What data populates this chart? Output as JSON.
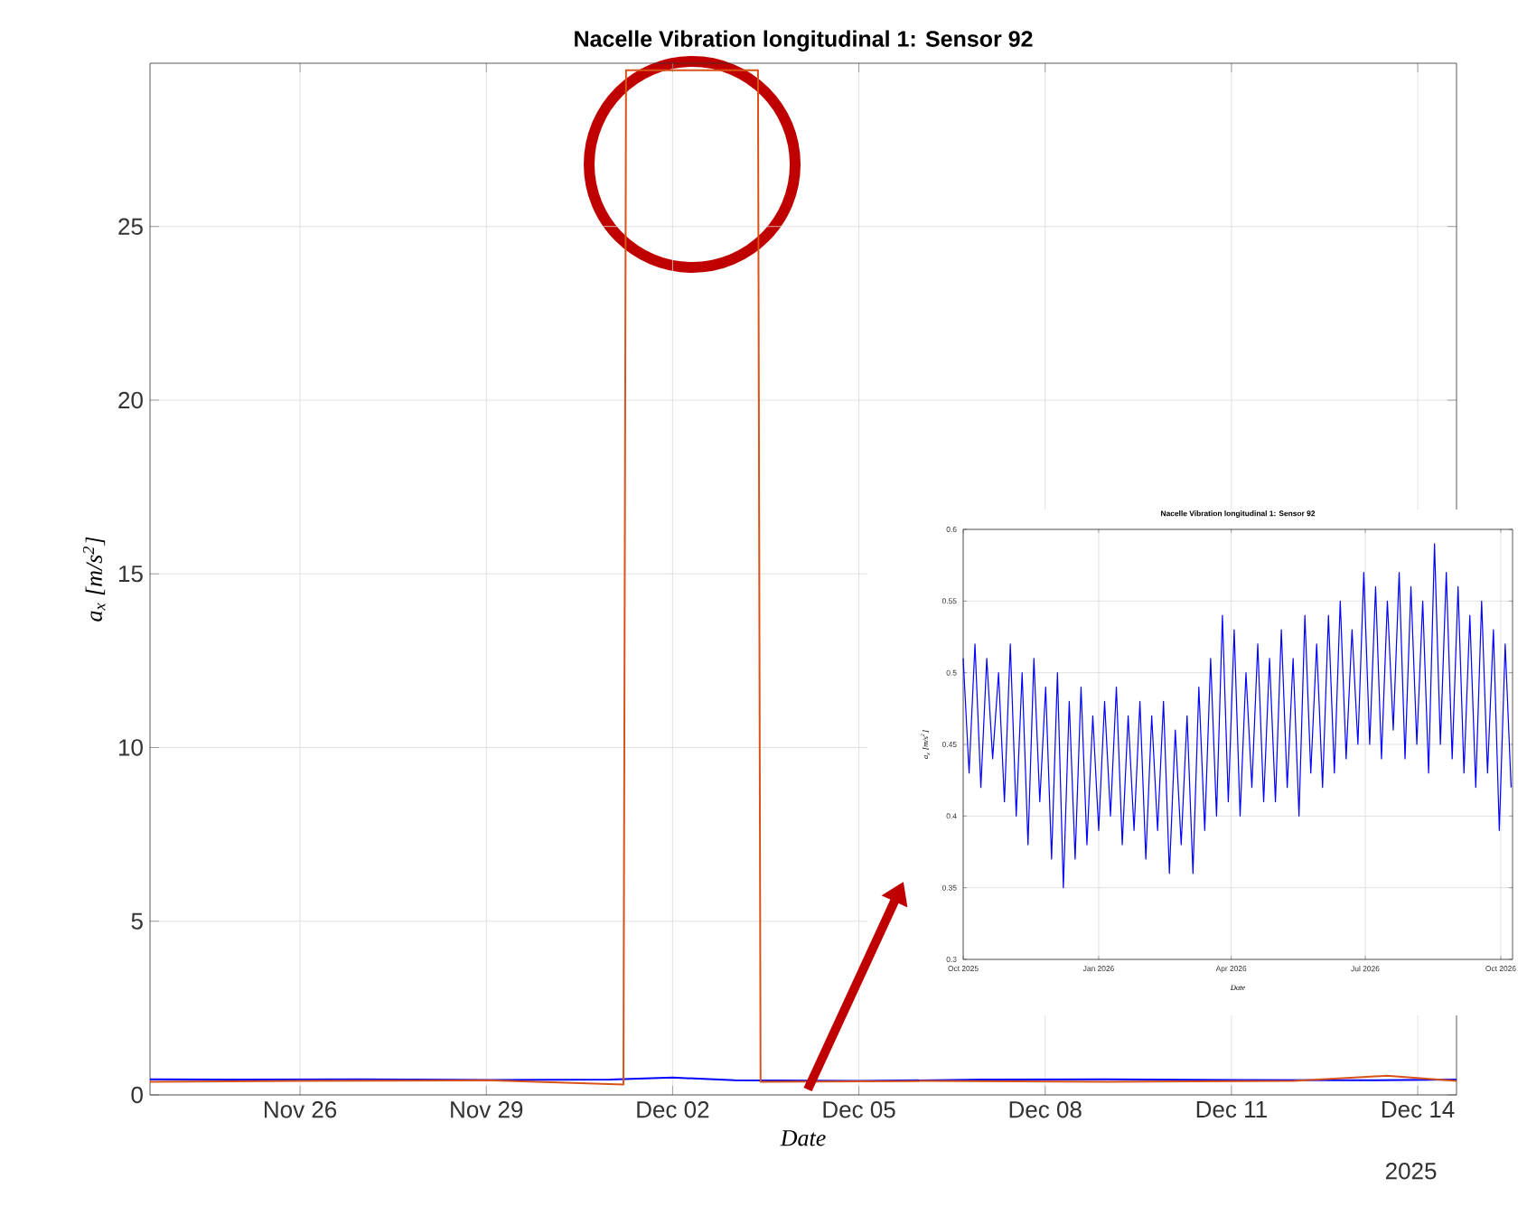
{
  "chart_data": [
    {
      "type": "line",
      "title": "Nacelle Vibration longitudinal 1: Sensor 92",
      "xlabel": "Date",
      "ylabel": "a$_{x}$ [m/s$^{2}$]",
      "xlim": [
        "2025-11-23T14:00",
        "2025-12-14T15:00"
      ],
      "ylim": [
        0,
        29.7
      ],
      "xticks": [
        {
          "value": "2025-11-26",
          "label": "Nov 26"
        },
        {
          "value": "2025-11-29",
          "label": "Nov 29"
        },
        {
          "value": "2025-12-02",
          "label": "Dec 02"
        },
        {
          "value": "2025-12-05",
          "label": "Dec 05"
        },
        {
          "value": "2025-12-08",
          "label": "Dec 08"
        },
        {
          "value": "2025-12-11",
          "label": "Dec 11"
        },
        {
          "value": "2025-12-14",
          "label": "Dec 14"
        }
      ],
      "yticks": [
        0,
        5,
        10,
        15,
        20,
        25
      ],
      "grid": true,
      "marker": "none",
      "line_style": "solid",
      "annotations": [
        "2025"
      ],
      "series": [
        {
          "color": "#0000ff",
          "x": [
            "2025-11-23T14:00",
            "2025-11-25",
            "2025-11-27",
            "2025-11-29",
            "2025-12-01",
            "2025-12-02",
            "2025-12-03",
            "2025-12-05",
            "2025-12-07",
            "2025-12-09",
            "2025-12-11",
            "2025-12-13",
            "2025-12-14T15:00"
          ],
          "values": [
            0.45,
            0.44,
            0.45,
            0.43,
            0.44,
            0.5,
            0.42,
            0.4,
            0.44,
            0.45,
            0.43,
            0.42,
            0.44
          ]
        },
        {
          "color": "#d95319",
          "x": [
            "2025-11-23T14:00",
            "2025-11-26",
            "2025-11-29",
            "2025-12-01T05:00",
            "2025-12-01T06:00",
            "2025-12-03T09:00",
            "2025-12-03T10:00",
            "2025-12-06",
            "2025-12-09",
            "2025-12-12",
            "2025-12-13T12:00",
            "2025-12-14T15:00"
          ],
          "values": [
            0.38,
            0.4,
            0.42,
            0.3,
            29.5,
            29.5,
            0.38,
            0.4,
            0.38,
            0.4,
            0.55,
            0.4
          ]
        }
      ]
    },
    {
      "type": "line",
      "title": "Nacelle Vibration longitudinal 1: Sensor 92",
      "xlabel": "Date",
      "ylabel": "a$_{x}$ [m/s$^{2}$]",
      "xlim": [
        "2025-10-01",
        "2026-10-09"
      ],
      "ylim": [
        0.3,
        0.6
      ],
      "xticks": [
        {
          "value": "2025-10-01",
          "label": "Oct 2025"
        },
        {
          "value": "2026-01-01",
          "label": "Jan 2026"
        },
        {
          "value": "2026-04-01",
          "label": "Apr 2026"
        },
        {
          "value": "2026-07-01",
          "label": "Jul 2026"
        },
        {
          "value": "2026-10-01",
          "label": "Oct 2026"
        }
      ],
      "yticks": [
        0.3,
        0.35,
        0.4,
        0.45,
        0.5,
        0.55,
        0.6
      ],
      "grid": true,
      "marker": "none",
      "line_style": "solid",
      "series": [
        {
          "color": "#0000ff",
          "x": [
            "2025-10-01",
            "2025-10-05",
            "2025-10-09",
            "2025-10-13",
            "2025-10-17",
            "2025-10-21",
            "2025-10-25",
            "2025-10-29",
            "2025-11-02",
            "2025-11-06",
            "2025-11-10",
            "2025-11-14",
            "2025-11-18",
            "2025-11-22",
            "2025-11-26",
            "2025-11-30",
            "2025-12-04",
            "2025-12-08",
            "2025-12-12",
            "2025-12-16",
            "2025-12-20",
            "2025-12-24",
            "2025-12-28",
            "2026-01-01",
            "2026-01-05",
            "2026-01-09",
            "2026-01-13",
            "2026-01-17",
            "2026-01-21",
            "2026-01-25",
            "2026-01-29",
            "2026-02-02",
            "2026-02-06",
            "2026-02-10",
            "2026-02-14",
            "2026-02-18",
            "2026-02-22",
            "2026-02-26",
            "2026-03-02",
            "2026-03-06",
            "2026-03-10",
            "2026-03-14",
            "2026-03-18",
            "2026-03-22",
            "2026-03-26",
            "2026-03-30",
            "2026-04-03",
            "2026-04-07",
            "2026-04-11",
            "2026-04-15",
            "2026-04-19",
            "2026-04-23",
            "2026-04-27",
            "2026-05-01",
            "2026-05-05",
            "2026-05-09",
            "2026-05-13",
            "2026-05-17",
            "2026-05-21",
            "2026-05-25",
            "2026-05-29",
            "2026-06-02",
            "2026-06-06",
            "2026-06-10",
            "2026-06-14",
            "2026-06-18",
            "2026-06-22",
            "2026-06-26",
            "2026-06-30",
            "2026-07-04",
            "2026-07-08",
            "2026-07-12",
            "2026-07-16",
            "2026-07-20",
            "2026-07-24",
            "2026-07-28",
            "2026-08-01",
            "2026-08-05",
            "2026-08-09",
            "2026-08-13",
            "2026-08-17",
            "2026-08-21",
            "2026-08-25",
            "2026-08-29",
            "2026-09-02",
            "2026-09-06",
            "2026-09-10",
            "2026-09-14",
            "2026-09-18",
            "2026-09-22",
            "2026-09-26",
            "2026-09-30",
            "2026-10-04",
            "2026-10-08"
          ],
          "values": [
            0.51,
            0.43,
            0.52,
            0.42,
            0.51,
            0.44,
            0.5,
            0.41,
            0.52,
            0.4,
            0.5,
            0.38,
            0.51,
            0.41,
            0.49,
            0.37,
            0.5,
            0.35,
            0.48,
            0.37,
            0.49,
            0.38,
            0.47,
            0.39,
            0.48,
            0.4,
            0.49,
            0.38,
            0.47,
            0.39,
            0.48,
            0.37,
            0.47,
            0.39,
            0.48,
            0.36,
            0.46,
            0.38,
            0.47,
            0.36,
            0.49,
            0.39,
            0.51,
            0.4,
            0.54,
            0.41,
            0.53,
            0.4,
            0.5,
            0.42,
            0.52,
            0.41,
            0.51,
            0.41,
            0.53,
            0.42,
            0.51,
            0.4,
            0.54,
            0.43,
            0.52,
            0.42,
            0.54,
            0.43,
            0.55,
            0.44,
            0.53,
            0.45,
            0.57,
            0.45,
            0.56,
            0.44,
            0.55,
            0.46,
            0.57,
            0.44,
            0.56,
            0.45,
            0.55,
            0.43,
            0.59,
            0.45,
            0.57,
            0.44,
            0.56,
            0.43,
            0.54,
            0.42,
            0.55,
            0.43,
            0.53,
            0.39,
            0.52,
            0.42
          ]
        }
      ]
    }
  ]
}
